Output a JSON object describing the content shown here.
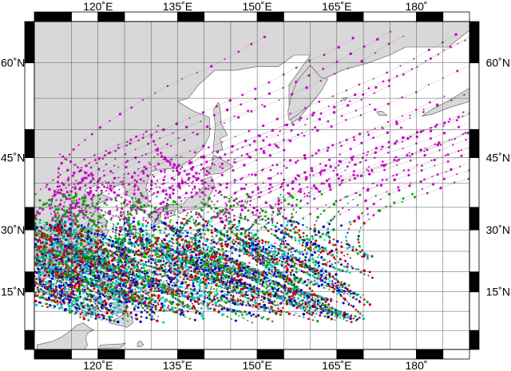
{
  "map": {
    "lon_range": [
      108,
      190
    ],
    "lat_range": [
      0,
      65
    ],
    "projection": "mercator",
    "frame_style": "alternating black/white bars",
    "colors": {
      "land": "#d8d8d8",
      "ocean": "#ffffff",
      "coastline": "#555555",
      "grid": "#000000",
      "track_colors": [
        "#0000c8",
        "#c80000",
        "#00a000",
        "#00c8c8",
        "#c800c8",
        "#a0a000",
        "#404040"
      ]
    },
    "lon_ticks": [
      {
        "value": 120,
        "label": "120˚E"
      },
      {
        "value": 135,
        "label": "135˚E"
      },
      {
        "value": 150,
        "label": "150˚E"
      },
      {
        "value": 165,
        "label": "165˚E"
      },
      {
        "value": 180,
        "label": "180˚"
      }
    ],
    "lat_ticks": [
      {
        "value": 15,
        "label": "15˚N"
      },
      {
        "value": 30,
        "label": "30˚N"
      },
      {
        "value": 45,
        "label": "45˚N"
      },
      {
        "value": 60,
        "label": "60˚N"
      }
    ],
    "track_count": 260,
    "subject": "Western North Pacific tropical cyclone tracks"
  }
}
